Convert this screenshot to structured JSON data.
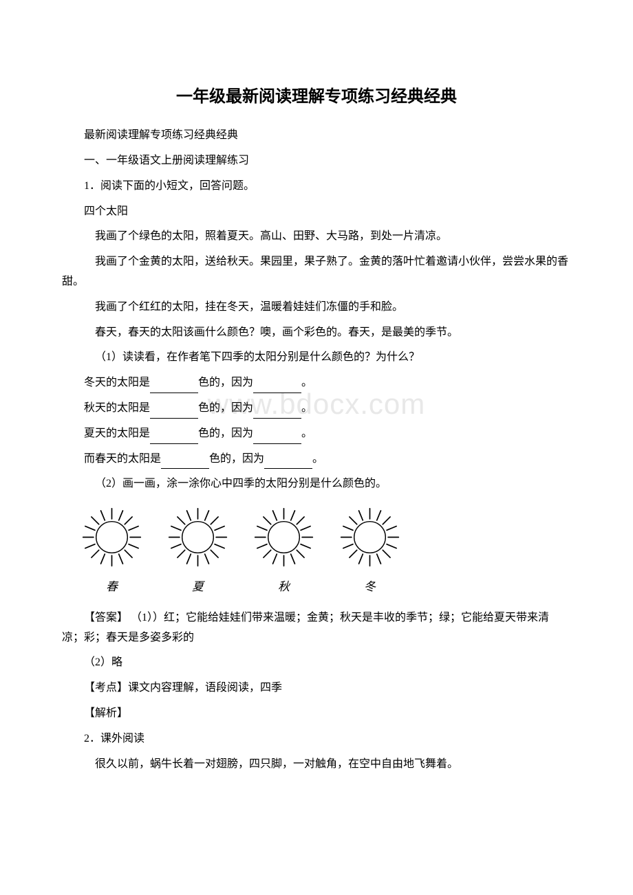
{
  "title": "一年级最新阅读理解专项练习经典经典",
  "intro_line": "最新阅读理解专项练习经典经典",
  "section_heading": "一、一年级语文上册阅读理解练习",
  "q1_heading": "1．阅读下面的小短文，回答问题。",
  "passage_title": "四个太阳",
  "passage_p1": "我画了个绿色的太阳，照着夏天。高山、田野、大马路，到处一片清凉。",
  "passage_p2": "我画了个金黄的太阳，送给秋天。果园里，果子熟了。金黄的落叶忙着邀请小伙伴，尝尝水果的香甜。",
  "passage_p3": "我画了个红红的太阳，挂在冬天，温暖着娃娃们冻僵的手和脸。",
  "passage_p4": "春天，春天的太阳该画什么颜色？噢，画个彩色的。春天，是最美的季节。",
  "q1_sub1": "（1）读读看，在作者笔下四季的太阳分别是什么颜色的？为什么？",
  "q1_line1_a": "冬天的太阳是",
  "q1_line_mid": "色的，因为",
  "q1_line_end": "。",
  "q1_line2_a": "秋天的太阳是",
  "q1_line3_a": "夏天的太阳是",
  "q1_line4_a": "而春天的太阳是",
  "q1_sub2": "（2）画一画，涂一涂你心中四季的太阳分别是什么颜色的。",
  "seasons": {
    "spring": "春",
    "summer": "夏",
    "autumn": "秋",
    "winter": "冬"
  },
  "answer_label": "【答案】",
  "answer_text": "（1））红；它能给娃娃们带来温暖；金黄；秋天是丰收的季节；绿；它能给夏天带来清凉；彩；春天是多姿多彩的",
  "answer_2": "（2）略",
  "kaodian_label": "【考点】",
  "kaodian_text": "课文内容理解，语段阅读，四季",
  "jiexi_label": "【解析】",
  "q2_heading": "2．课外阅读",
  "q2_p1": "很久以前，蜗牛长着一对翅膀，四只脚，一对触角，在空中自由地飞舞着。",
  "watermark_text": "www.bdocx.com",
  "sun_icon": {
    "circle_stroke": "#000000",
    "circle_fill": "#ffffff",
    "circle_stroke_width": 1.5,
    "ray_stroke_width": 1.8
  }
}
